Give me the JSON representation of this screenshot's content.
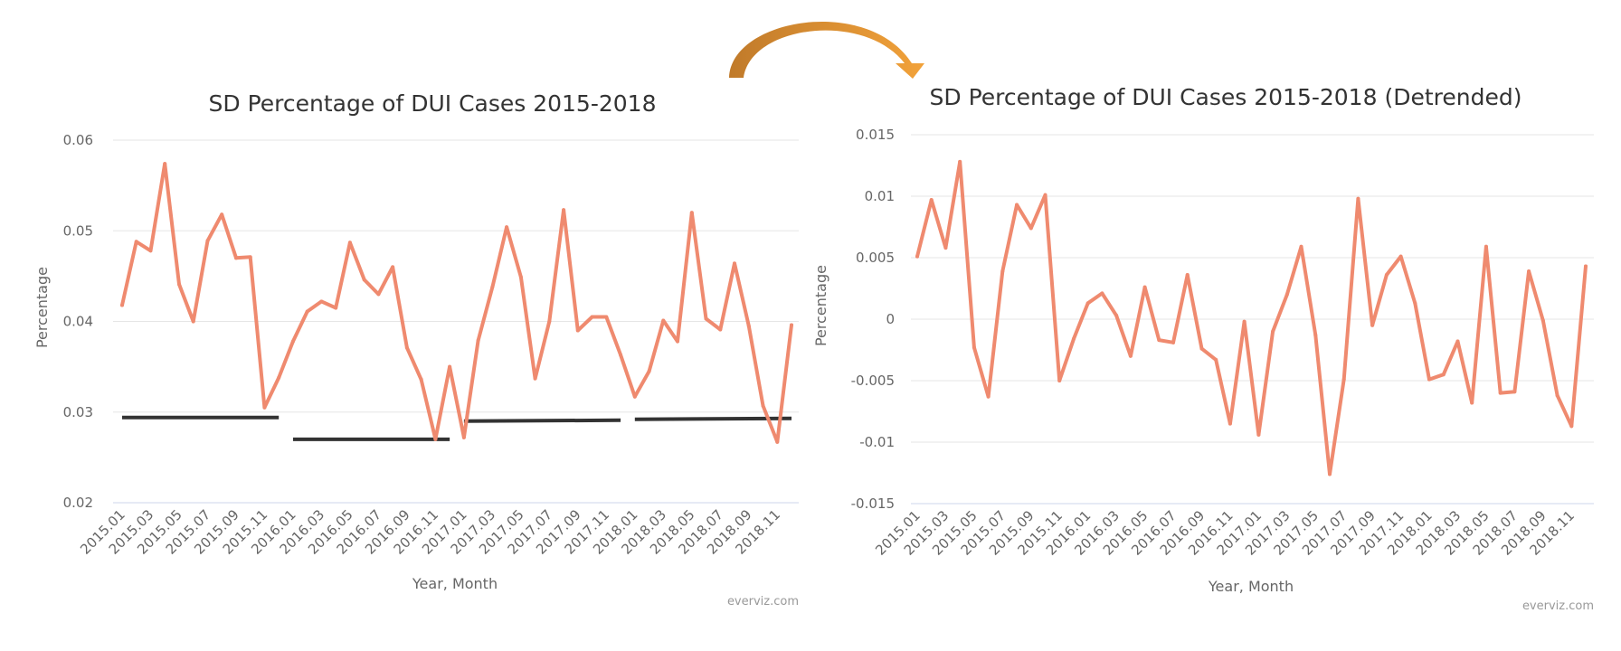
{
  "colors": {
    "series": "#ef8a6f",
    "reference": "#333333",
    "arrow_start": "#c07a2a",
    "arrow_end": "#f2a23a"
  },
  "arrow": {
    "icon": "curved-arrow-right-icon"
  },
  "chart_data": [
    {
      "type": "line",
      "title": "SD Percentage of DUI Cases 2015-2018",
      "xlabel": "Year, Month",
      "ylabel": "Percentage",
      "credit": "everviz.com",
      "ylim": [
        0.02,
        0.06
      ],
      "yticks": [
        "0.06",
        "0.05",
        "0.04",
        "0.03",
        "0.02"
      ],
      "ytick_values": [
        0.06,
        0.05,
        0.04,
        0.03,
        0.02
      ],
      "xticks": [
        "2015.01",
        "2015.03",
        "2015.05",
        "2015.07",
        "2015.09",
        "2015.11",
        "2016.01",
        "2016.03",
        "2016.05",
        "2016.07",
        "2016.09",
        "2016.11",
        "2017.01",
        "2017.03",
        "2017.05",
        "2017.07",
        "2017.09",
        "2017.11",
        "2018.01",
        "2018.03",
        "2018.05",
        "2018.07",
        "2018.09",
        "2018.11"
      ],
      "grid": true,
      "legend": "none",
      "series": [
        {
          "values": [
            0.0418,
            0.0488,
            0.0478,
            0.0574,
            0.0441,
            0.04,
            0.0489,
            0.0518,
            0.047,
            0.0471,
            0.0305,
            0.0338,
            0.0378,
            0.0411,
            0.0422,
            0.0415,
            0.0487,
            0.0446,
            0.043,
            0.046,
            0.0371,
            0.0336,
            0.027,
            0.035,
            0.0272,
            0.0379,
            0.0438,
            0.0504,
            0.0449,
            0.0337,
            0.04,
            0.0523,
            0.039,
            0.0405,
            0.0405,
            0.0363,
            0.0317,
            0.0345,
            0.0401,
            0.0378,
            0.052,
            0.0403,
            0.0391,
            0.0464,
            0.0395,
            0.0307,
            0.0267,
            0.0396
          ]
        }
      ],
      "reference_lines": [
        {
          "from": 0,
          "to": 11,
          "values": [
            0.0294,
            0.0294
          ]
        },
        {
          "from": 12,
          "to": 23,
          "values": [
            0.027,
            0.027
          ]
        },
        {
          "from": 24,
          "to": 35,
          "values": [
            0.029,
            0.0291
          ]
        },
        {
          "from": 36,
          "to": 47,
          "values": [
            0.0292,
            0.0293
          ]
        }
      ]
    },
    {
      "type": "line",
      "title": "SD Percentage of DUI Cases 2015-2018 (Detrended)",
      "xlabel": "Year, Month",
      "ylabel": "Percentage",
      "credit": "everviz.com",
      "ylim": [
        -0.015,
        0.015
      ],
      "yticks": [
        "0.015",
        "0.01",
        "0.005",
        "0",
        "-0.005",
        "-0.01",
        "-0.015"
      ],
      "ytick_values": [
        0.015,
        0.01,
        0.005,
        0,
        -0.005,
        -0.01,
        -0.015
      ],
      "xticks": [
        "2015.01",
        "2015.03",
        "2015.05",
        "2015.07",
        "2015.09",
        "2015.11",
        "2016.01",
        "2016.03",
        "2016.05",
        "2016.07",
        "2016.09",
        "2016.11",
        "2017.01",
        "2017.03",
        "2017.05",
        "2017.07",
        "2017.09",
        "2017.11",
        "2018.01",
        "2018.03",
        "2018.05",
        "2018.07",
        "2018.09",
        "2018.11"
      ],
      "grid": true,
      "legend": "none",
      "series": [
        {
          "values": [
            0.0051,
            0.0097,
            0.0058,
            0.0128,
            -0.0023,
            -0.0063,
            0.0039,
            0.0093,
            0.0074,
            0.0101,
            -0.005,
            -0.0016,
            0.0013,
            0.0021,
            0.0003,
            -0.003,
            0.0026,
            -0.0017,
            -0.0019,
            0.0036,
            -0.0024,
            -0.0033,
            -0.0085,
            -0.0002,
            -0.0094,
            -0.001,
            0.002,
            0.0059,
            -0.0013,
            -0.0126,
            -0.0049,
            0.0098,
            -0.0005,
            0.0036,
            0.0051,
            0.0013,
            -0.0049,
            -0.0045,
            -0.0018,
            -0.0068,
            0.0059,
            -0.006,
            -0.0059,
            0.0039,
            -0.0001,
            -0.0062,
            -0.0087,
            0.0043
          ]
        }
      ]
    }
  ]
}
